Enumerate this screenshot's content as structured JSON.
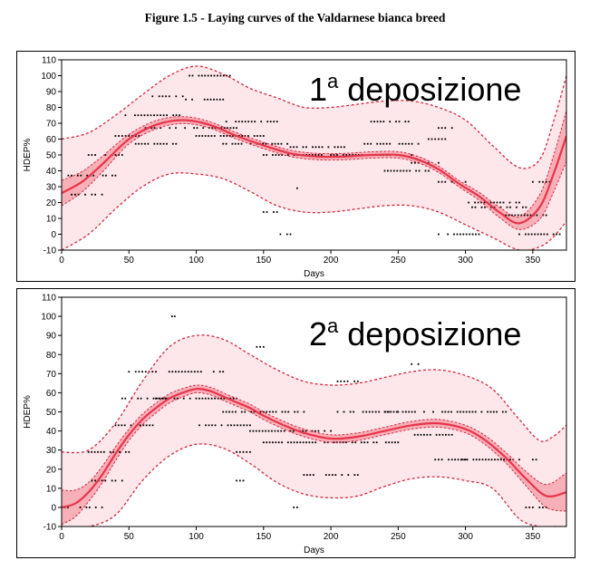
{
  "figure_title": "Figure 1.5 - Laying curves of the Valdarnese bianca breed",
  "colors": {
    "fit_line": "#e8344a",
    "band_dash": "#d7263d",
    "wide_band_fill": "#fde7ea",
    "narrow_band_fill": "#f6a8b3",
    "points": "#000000"
  },
  "chart_data": [
    {
      "type": "scatter",
      "annotation": "1",
      "annotation_sup": "a",
      "annotation_rest": " deposizione",
      "xlabel": "Days",
      "ylabel": "HDEP%",
      "xlim": [
        0,
        375
      ],
      "ylim": [
        -10,
        110
      ],
      "xticks": [
        0,
        50,
        100,
        150,
        200,
        250,
        300,
        350
      ],
      "yticks": [
        -10,
        0,
        10,
        20,
        30,
        40,
        50,
        60,
        70,
        80,
        90,
        100,
        110
      ],
      "fit_curve": {
        "x": [
          0,
          15,
          30,
          50,
          70,
          90,
          110,
          130,
          150,
          170,
          190,
          210,
          230,
          250,
          265,
          280,
          295,
          310,
          325,
          340,
          355,
          365,
          375
        ],
        "y": [
          26,
          33,
          44,
          60,
          69,
          72,
          69,
          62,
          56,
          51,
          49,
          49,
          50,
          50,
          47,
          41,
          32,
          24,
          14,
          7,
          17,
          37,
          62
        ]
      },
      "confidence_halfwidth": {
        "x": [
          0,
          50,
          100,
          300,
          340,
          360,
          375
        ],
        "y": [
          8,
          3,
          2,
          2,
          4,
          9,
          16
        ]
      },
      "prediction_band": {
        "x": [
          0,
          20,
          40,
          60,
          80,
          100,
          120,
          140,
          160,
          180,
          200,
          220,
          240,
          260,
          280,
          300,
          320,
          340,
          355,
          365,
          375
        ],
        "upper": [
          60,
          64,
          75,
          88,
          100,
          106,
          101,
          92,
          86,
          80,
          80,
          82,
          84,
          84,
          80,
          72,
          56,
          42,
          47,
          70,
          100
        ],
        "lower": [
          -10,
          0,
          16,
          30,
          38,
          38,
          35,
          27,
          18,
          14,
          14,
          16,
          18,
          18,
          14,
          6,
          -2,
          -10,
          -8,
          -2,
          8
        ]
      },
      "point_clusters": [
        {
          "x": [
            5,
            40
          ],
          "y": 37
        },
        {
          "x": [
            5,
            30
          ],
          "y": 25
        },
        {
          "x": [
            20,
            45
          ],
          "y": 50
        },
        {
          "x": [
            40,
            60
          ],
          "y": 62
        },
        {
          "x": [
            45,
            90
          ],
          "y": 75
        },
        {
          "x": [
            55,
            85
          ],
          "y": 57
        },
        {
          "x": [
            65,
            90
          ],
          "y": 87
        },
        {
          "x": [
            60,
            130
          ],
          "y": 67
        },
        {
          "x": [
            90,
            120
          ],
          "y": 85
        },
        {
          "x": [
            95,
            125
          ],
          "y": 100
        },
        {
          "x": [
            100,
            150
          ],
          "y": 62
        },
        {
          "x": [
            120,
            160
          ],
          "y": 71
        },
        {
          "x": [
            120,
            170
          ],
          "y": 57
        },
        {
          "x": [
            150,
            200
          ],
          "y": 50
        },
        {
          "x": [
            170,
            210
          ],
          "y": 55
        },
        {
          "x": [
            200,
            260
          ],
          "y": 50
        },
        {
          "x": [
            230,
            260
          ],
          "y": 71
        },
        {
          "x": [
            225,
            265
          ],
          "y": 57
        },
        {
          "x": [
            240,
            275
          ],
          "y": 40
        },
        {
          "x": [
            260,
            280
          ],
          "y": 45
        },
        {
          "x": [
            280,
            300
          ],
          "y": 33
        },
        {
          "x": [
            300,
            340
          ],
          "y": 20
        },
        {
          "x": [
            305,
            345
          ],
          "y": 17
        },
        {
          "x": [
            330,
            360
          ],
          "y": 12
        },
        {
          "x": [
            340,
            370
          ],
          "y": 0
        },
        {
          "x": [
            150,
            160
          ],
          "y": 14
        },
        {
          "x": [
            160,
            170
          ],
          "y": 0
        },
        {
          "x": [
            175,
            180
          ],
          "y": 29
        },
        {
          "x": [
            350,
            365
          ],
          "y": 33
        },
        {
          "x": [
            270,
            290
          ],
          "y": 60
        },
        {
          "x": [
            280,
            290
          ],
          "y": 67
        },
        {
          "x": [
            280,
            310
          ],
          "y": 0
        }
      ]
    },
    {
      "type": "scatter",
      "annotation": "2",
      "annotation_sup": "a",
      "annotation_rest": " deposizione",
      "xlabel": "Days",
      "ylabel": "HDEP%",
      "xlim": [
        0,
        375
      ],
      "ylim": [
        -10,
        110
      ],
      "xticks": [
        0,
        50,
        100,
        150,
        200,
        250,
        300,
        350
      ],
      "yticks": [
        -10,
        0,
        10,
        20,
        30,
        40,
        50,
        60,
        70,
        80,
        90,
        100,
        110
      ],
      "fit_curve": {
        "x": [
          0,
          10,
          20,
          30,
          40,
          50,
          60,
          70,
          80,
          90,
          100,
          110,
          120,
          130,
          140,
          150,
          165,
          180,
          200,
          220,
          240,
          260,
          280,
          300,
          315,
          330,
          345,
          360,
          375
        ],
        "y": [
          0,
          2,
          8,
          17,
          28,
          38,
          46,
          52,
          57,
          60,
          62,
          61,
          58,
          55,
          52,
          48,
          43,
          39,
          36,
          37,
          40,
          43,
          44,
          41,
          35,
          26,
          15,
          6,
          8
        ]
      },
      "confidence_halfwidth": {
        "x": [
          0,
          20,
          50,
          100,
          300,
          340,
          360,
          375
        ],
        "y": [
          9,
          5,
          3,
          2,
          2,
          3,
          6,
          10
        ]
      },
      "prediction_band": {
        "x": [
          0,
          20,
          40,
          60,
          80,
          100,
          120,
          140,
          160,
          180,
          200,
          220,
          240,
          260,
          280,
          300,
          320,
          340,
          355,
          365,
          375
        ],
        "upper": [
          29,
          30,
          44,
          66,
          84,
          90,
          88,
          80,
          72,
          66,
          64,
          65,
          68,
          71,
          72,
          69,
          62,
          46,
          35,
          37,
          43
        ],
        "lower": [
          -10,
          -10,
          -4,
          14,
          27,
          33,
          31,
          23,
          13,
          7,
          5,
          6,
          11,
          15,
          16,
          14,
          10,
          -6,
          -10,
          -10,
          -10
        ]
      },
      "point_clusters": [
        {
          "x": [
            0,
            30
          ],
          "y": 0
        },
        {
          "x": [
            20,
            45
          ],
          "y": 14
        },
        {
          "x": [
            20,
            50
          ],
          "y": 29
        },
        {
          "x": [
            40,
            70
          ],
          "y": 43
        },
        {
          "x": [
            45,
            80
          ],
          "y": 57
        },
        {
          "x": [
            50,
            70
          ],
          "y": 71
        },
        {
          "x": [
            70,
            130
          ],
          "y": 57
        },
        {
          "x": [
            80,
            120
          ],
          "y": 71
        },
        {
          "x": [
            100,
            140
          ],
          "y": 43
        },
        {
          "x": [
            120,
            180
          ],
          "y": 50
        },
        {
          "x": [
            140,
            200
          ],
          "y": 40
        },
        {
          "x": [
            150,
            250
          ],
          "y": 34
        },
        {
          "x": [
            180,
            220
          ],
          "y": 17
        },
        {
          "x": [
            205,
            250
          ],
          "y": 50
        },
        {
          "x": [
            205,
            220
          ],
          "y": 66
        },
        {
          "x": [
            240,
            330
          ],
          "y": 50
        },
        {
          "x": [
            260,
            290
          ],
          "y": 38
        },
        {
          "x": [
            275,
            300
          ],
          "y": 25
        },
        {
          "x": [
            290,
            340
          ],
          "y": 25
        },
        {
          "x": [
            345,
            360
          ],
          "y": 0
        },
        {
          "x": [
            130,
            140
          ],
          "y": 29
        },
        {
          "x": [
            145,
            150
          ],
          "y": 84
        },
        {
          "x": [
            82,
            86
          ],
          "y": 100
        },
        {
          "x": [
            260,
            265
          ],
          "y": 75
        },
        {
          "x": [
            130,
            135
          ],
          "y": 14
        },
        {
          "x": [
            170,
            175
          ],
          "y": 0
        },
        {
          "x": [
            350,
            355
          ],
          "y": 25
        }
      ]
    }
  ]
}
